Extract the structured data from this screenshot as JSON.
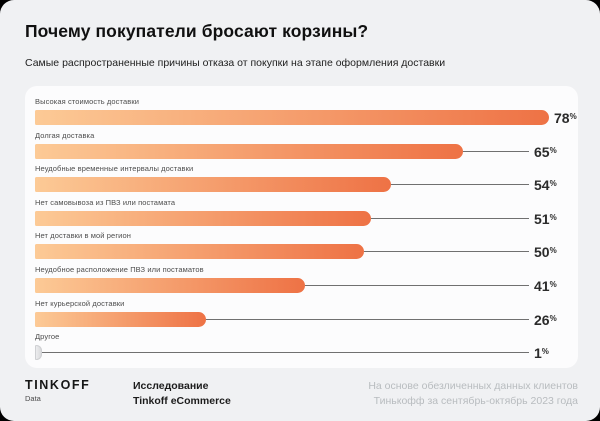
{
  "page": {
    "title": "Почему покупатели бросают корзины?",
    "subtitle": "Самые распространенные причины отказа от покупки на этапе оформления доставки"
  },
  "chart_data": {
    "type": "bar",
    "orientation": "horizontal",
    "title": "Почему покупатели бросают корзины?",
    "subtitle": "Самые распространенные причины отказа от покупки на этапе оформления доставки",
    "categories": [
      "Высокая стоимость доставки",
      "Долгая доставка",
      "Неудобные временные интервалы доставки",
      "Нет самовывоза из ПВЗ или постамата",
      "Нет доставки в мой регион",
      "Неудобное расположение ПВЗ или постаматов",
      "Нет курьерской доставки",
      "Другое"
    ],
    "values": [
      78,
      65,
      54,
      51,
      50,
      41,
      26,
      1
    ],
    "value_suffix": "%",
    "max_value": 78,
    "xlim": [
      0,
      80
    ],
    "grid": false,
    "legend": false,
    "bar_gradient": [
      "#FCCA96",
      "#EE7245"
    ],
    "muted_bar_gradient": [
      "#F0F0F2",
      "#D6D7D9"
    ],
    "muted_indices": [
      7
    ],
    "value_labels_position": "right-with-leader-line"
  },
  "footer": {
    "logo_primary": "TINKOFF",
    "logo_secondary": "Data",
    "study_line1": "Исследование",
    "study_line2": "Tinkoff eCommerce",
    "note_line1": "На основе обезличенных данных клиентов",
    "note_line2": "Тинькофф за сентябрь-октябрь 2023 года"
  },
  "colors": {
    "page_background": "#f0f1f3",
    "card_background": "#fcfcfd",
    "accent_dark_orange": "#EE7245",
    "accent_light_orange": "#FCCA96",
    "leader_line": "#707070",
    "footer_note_gray": "#b8bcbf"
  }
}
